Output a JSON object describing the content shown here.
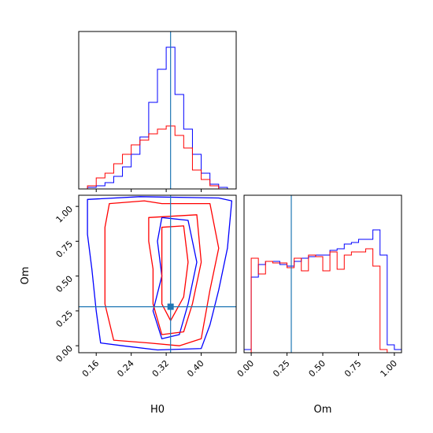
{
  "chart_data": {
    "type": "corner",
    "parameters": [
      "H0",
      "Om"
    ],
    "truth": {
      "H0": 0.33,
      "Om": 0.28
    },
    "colors": {
      "series_a": "#0000ff",
      "series_b": "#ff0000",
      "truth": "#1f77b4"
    },
    "panels": {
      "hist_H0": {
        "type": "step-histogram",
        "xlim": [
          0.12,
          0.48
        ],
        "bin_edges": [
          0.12,
          0.14,
          0.16,
          0.18,
          0.2,
          0.22,
          0.24,
          0.26,
          0.28,
          0.3,
          0.32,
          0.34,
          0.36,
          0.38,
          0.4,
          0.42,
          0.44,
          0.46,
          0.48
        ],
        "series": [
          {
            "color": "blue",
            "counts": [
              0.0,
              0.01,
              0.02,
              0.04,
              0.08,
              0.14,
              0.22,
              0.33,
              0.55,
              0.76,
              0.9,
              0.6,
              0.38,
              0.22,
              0.1,
              0.03,
              0.01,
              0.0
            ]
          },
          {
            "color": "red",
            "counts": [
              0.0,
              0.02,
              0.07,
              0.1,
              0.16,
              0.22,
              0.28,
              0.31,
              0.35,
              0.38,
              0.4,
              0.34,
              0.26,
              0.12,
              0.06,
              0.02,
              0.0,
              0.0
            ]
          }
        ],
        "x_ticks": [
          0.16,
          0.24,
          0.32,
          0.4
        ]
      },
      "hist_Om": {
        "type": "step-histogram",
        "xlim": [
          -0.05,
          1.05
        ],
        "bin_edges": [
          -0.05,
          0.0,
          0.05,
          0.1,
          0.15,
          0.2,
          0.25,
          0.3,
          0.35,
          0.4,
          0.45,
          0.5,
          0.55,
          0.6,
          0.65,
          0.7,
          0.75,
          0.8,
          0.85,
          0.9,
          0.95,
          1.0,
          1.05
        ],
        "series": [
          {
            "color": "blue",
            "counts": [
              0.02,
              0.48,
              0.56,
              0.58,
              0.58,
              0.56,
              0.55,
              0.58,
              0.6,
              0.61,
              0.62,
              0.62,
              0.65,
              0.66,
              0.69,
              0.7,
              0.72,
              0.72,
              0.78,
              0.62,
              0.05,
              0.02
            ]
          },
          {
            "color": "red",
            "counts": [
              0.0,
              0.6,
              0.5,
              0.58,
              0.57,
              0.57,
              0.54,
              0.6,
              0.52,
              0.62,
              0.61,
              0.52,
              0.64,
              0.53,
              0.62,
              0.64,
              0.64,
              0.66,
              0.55,
              0.02,
              0.0,
              0.0
            ]
          }
        ],
        "x_ticks": [
          0.0,
          0.25,
          0.5,
          0.75,
          1.0
        ],
        "x_tick_labels": [
          "0.00",
          "0.25",
          "0.50",
          "0.75",
          "1.00"
        ],
        "xlabel": "Om"
      },
      "joint": {
        "type": "contour",
        "xlim": [
          0.12,
          0.48
        ],
        "ylim": [
          -0.05,
          1.08
        ],
        "x_ticks": [
          0.16,
          0.24,
          0.32,
          0.4
        ],
        "y_ticks": [
          0.0,
          0.25,
          0.5,
          0.75,
          1.0
        ],
        "y_tick_labels": [
          "0.00",
          "0.25",
          "0.50",
          "0.75",
          "1.00"
        ],
        "xlabel": "H0",
        "ylabel": "Om",
        "contours": [
          {
            "color": "blue",
            "level": "outer",
            "points": [
              [
                0.14,
                1.05
              ],
              [
                0.26,
                1.07
              ],
              [
                0.44,
                1.06
              ],
              [
                0.47,
                1.04
              ],
              [
                0.46,
                0.7
              ],
              [
                0.44,
                0.4
              ],
              [
                0.42,
                0.15
              ],
              [
                0.4,
                -0.02
              ],
              [
                0.3,
                -0.03
              ],
              [
                0.22,
                0.0
              ],
              [
                0.17,
                0.02
              ],
              [
                0.16,
                0.25
              ],
              [
                0.15,
                0.55
              ],
              [
                0.14,
                0.8
              ]
            ]
          },
          {
            "color": "blue",
            "level": "inner",
            "points": [
              [
                0.31,
                0.92
              ],
              [
                0.37,
                0.9
              ],
              [
                0.39,
                0.6
              ],
              [
                0.37,
                0.3
              ],
              [
                0.35,
                0.08
              ],
              [
                0.31,
                0.05
              ],
              [
                0.29,
                0.25
              ],
              [
                0.31,
                0.5
              ],
              [
                0.3,
                0.75
              ]
            ]
          },
          {
            "color": "red",
            "level": "outer",
            "points": [
              [
                0.19,
                1.02
              ],
              [
                0.27,
                1.04
              ],
              [
                0.31,
                1.02
              ],
              [
                0.42,
                1.02
              ],
              [
                0.44,
                0.7
              ],
              [
                0.42,
                0.4
              ],
              [
                0.4,
                0.05
              ],
              [
                0.35,
                0.0
              ],
              [
                0.28,
                0.02
              ],
              [
                0.2,
                0.04
              ],
              [
                0.18,
                0.3
              ],
              [
                0.18,
                0.6
              ],
              [
                0.18,
                0.85
              ]
            ]
          },
          {
            "color": "red",
            "level": "middle",
            "points": [
              [
                0.28,
                0.92
              ],
              [
                0.39,
                0.94
              ],
              [
                0.4,
                0.6
              ],
              [
                0.38,
                0.3
              ],
              [
                0.36,
                0.1
              ],
              [
                0.31,
                0.08
              ],
              [
                0.29,
                0.3
              ],
              [
                0.29,
                0.55
              ],
              [
                0.28,
                0.75
              ]
            ]
          },
          {
            "color": "red",
            "level": "inner",
            "points": [
              [
                0.31,
                0.85
              ],
              [
                0.36,
                0.86
              ],
              [
                0.37,
                0.6
              ],
              [
                0.36,
                0.35
              ],
              [
                0.33,
                0.18
              ],
              [
                0.31,
                0.3
              ],
              [
                0.31,
                0.55
              ]
            ]
          }
        ]
      }
    }
  }
}
